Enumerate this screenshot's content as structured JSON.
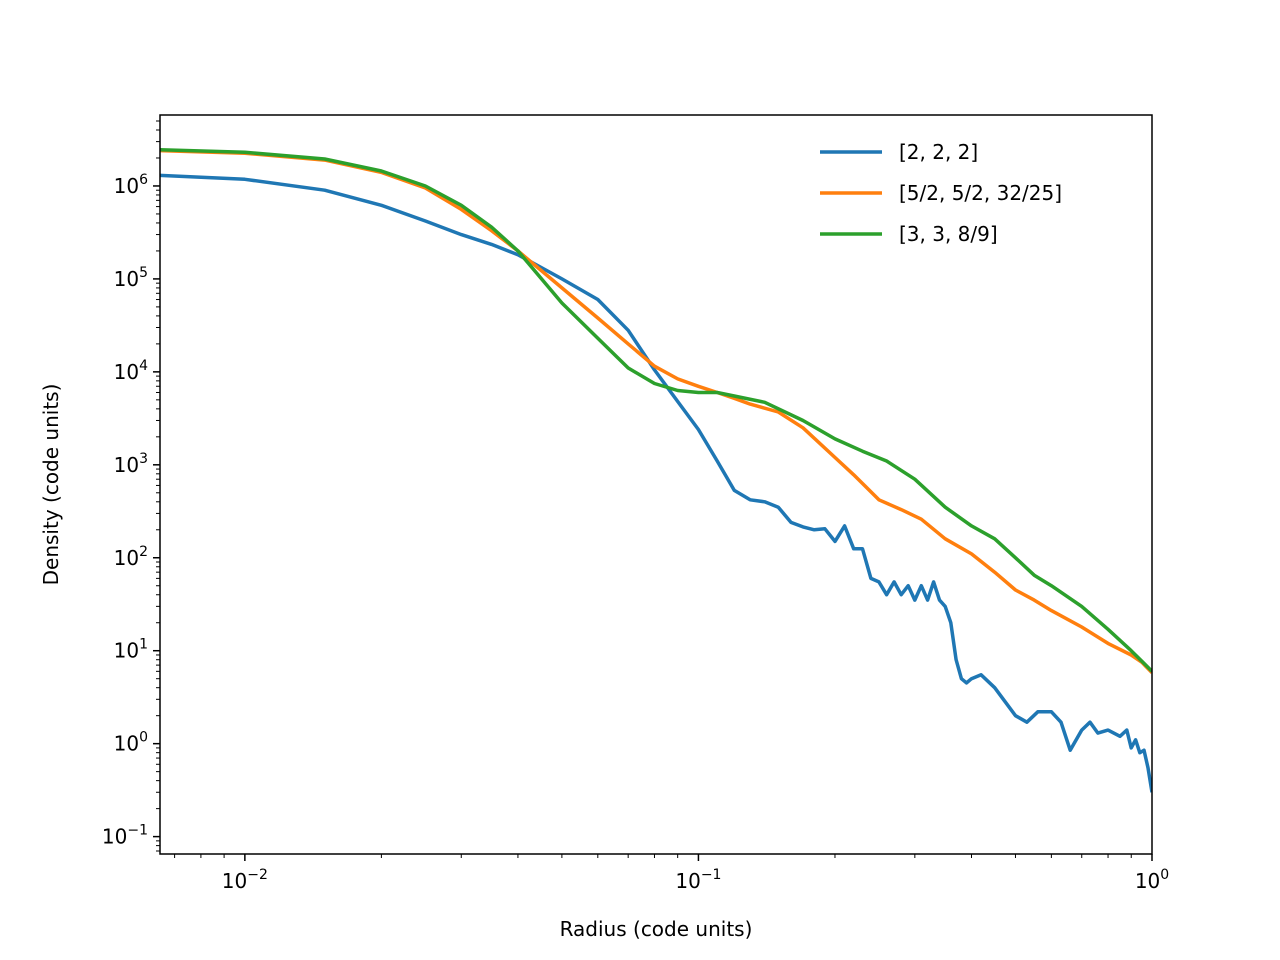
{
  "chart_data": {
    "type": "line",
    "title": "",
    "xlabel": "Radius (code units)",
    "ylabel": "Density (code units)",
    "xscale": "log",
    "yscale": "log",
    "xlim": [
      0.0065,
      1.0
    ],
    "ylim": [
      0.065,
      5800000
    ],
    "grid": false,
    "legend_position": "top-right",
    "x_ticks": [
      {
        "value": 0.01,
        "base": "10",
        "exp": "−2"
      },
      {
        "value": 0.1,
        "base": "10",
        "exp": "−1"
      },
      {
        "value": 1,
        "base": "10",
        "exp": "0"
      }
    ],
    "y_ticks": [
      {
        "value": 0.1,
        "base": "10",
        "exp": "−1"
      },
      {
        "value": 1,
        "base": "10",
        "exp": "0"
      },
      {
        "value": 10,
        "base": "10",
        "exp": "1"
      },
      {
        "value": 100,
        "base": "10",
        "exp": "2"
      },
      {
        "value": 1000,
        "base": "10",
        "exp": "3"
      },
      {
        "value": 10000,
        "base": "10",
        "exp": "4"
      },
      {
        "value": 100000,
        "base": "10",
        "exp": "5"
      },
      {
        "value": 1000000,
        "base": "10",
        "exp": "6"
      }
    ],
    "series": [
      {
        "name": "[2, 2, 2]",
        "color": "#1f77b4",
        "points": [
          [
            0.0065,
            1300000
          ],
          [
            0.01,
            1180000
          ],
          [
            0.015,
            900000
          ],
          [
            0.02,
            620000
          ],
          [
            0.025,
            420000
          ],
          [
            0.03,
            300000
          ],
          [
            0.035,
            235000
          ],
          [
            0.04,
            182000
          ],
          [
            0.05,
            100000
          ],
          [
            0.06,
            60000
          ],
          [
            0.07,
            28000
          ],
          [
            0.08,
            10500
          ],
          [
            0.09,
            4800
          ],
          [
            0.1,
            2400
          ],
          [
            0.11,
            1100
          ],
          [
            0.12,
            530
          ],
          [
            0.13,
            420
          ],
          [
            0.14,
            400
          ],
          [
            0.15,
            350
          ],
          [
            0.16,
            240
          ],
          [
            0.17,
            215
          ],
          [
            0.18,
            200
          ],
          [
            0.19,
            205
          ],
          [
            0.2,
            150
          ],
          [
            0.21,
            220
          ],
          [
            0.22,
            125
          ],
          [
            0.23,
            125
          ],
          [
            0.24,
            60
          ],
          [
            0.25,
            55
          ],
          [
            0.26,
            40
          ],
          [
            0.27,
            55
          ],
          [
            0.28,
            40
          ],
          [
            0.29,
            50
          ],
          [
            0.3,
            35
          ],
          [
            0.31,
            50
          ],
          [
            0.32,
            35
          ],
          [
            0.33,
            55
          ],
          [
            0.34,
            35
          ],
          [
            0.35,
            30
          ],
          [
            0.36,
            20
          ],
          [
            0.37,
            8
          ],
          [
            0.38,
            5
          ],
          [
            0.39,
            4.5
          ],
          [
            0.4,
            5
          ],
          [
            0.42,
            5.5
          ],
          [
            0.45,
            4
          ],
          [
            0.5,
            2
          ],
          [
            0.53,
            1.7
          ],
          [
            0.56,
            2.2
          ],
          [
            0.6,
            2.2
          ],
          [
            0.63,
            1.7
          ],
          [
            0.66,
            0.85
          ],
          [
            0.7,
            1.4
          ],
          [
            0.73,
            1.7
          ],
          [
            0.76,
            1.3
          ],
          [
            0.8,
            1.4
          ],
          [
            0.85,
            1.2
          ],
          [
            0.88,
            1.4
          ],
          [
            0.9,
            0.9
          ],
          [
            0.92,
            1.1
          ],
          [
            0.94,
            0.8
          ],
          [
            0.96,
            0.85
          ],
          [
            0.98,
            0.55
          ],
          [
            1.0,
            0.3
          ]
        ]
      },
      {
        "name": "[5/2, 5/2, 32/25]",
        "color": "#ff7f0e",
        "points": [
          [
            0.0065,
            2400000
          ],
          [
            0.01,
            2250000
          ],
          [
            0.015,
            1900000
          ],
          [
            0.02,
            1400000
          ],
          [
            0.025,
            950000
          ],
          [
            0.03,
            560000
          ],
          [
            0.035,
            330000
          ],
          [
            0.04,
            200000
          ],
          [
            0.05,
            80000
          ],
          [
            0.06,
            38000
          ],
          [
            0.07,
            20000
          ],
          [
            0.08,
            11500
          ],
          [
            0.09,
            8400
          ],
          [
            0.1,
            7000
          ],
          [
            0.11,
            6000
          ],
          [
            0.12,
            5200
          ],
          [
            0.13,
            4500
          ],
          [
            0.15,
            3700
          ],
          [
            0.17,
            2500
          ],
          [
            0.2,
            1200
          ],
          [
            0.22,
            780
          ],
          [
            0.25,
            420
          ],
          [
            0.28,
            330
          ],
          [
            0.31,
            260
          ],
          [
            0.35,
            160
          ],
          [
            0.4,
            110
          ],
          [
            0.45,
            70
          ],
          [
            0.5,
            45
          ],
          [
            0.55,
            35
          ],
          [
            0.6,
            27
          ],
          [
            0.7,
            18
          ],
          [
            0.8,
            12
          ],
          [
            0.9,
            9
          ],
          [
            0.95,
            7.5
          ],
          [
            1.0,
            5.8
          ]
        ]
      },
      {
        "name": "[3, 3, 8/9]",
        "color": "#2ca02c",
        "points": [
          [
            0.0065,
            2450000
          ],
          [
            0.01,
            2300000
          ],
          [
            0.015,
            1950000
          ],
          [
            0.02,
            1450000
          ],
          [
            0.025,
            1000000
          ],
          [
            0.03,
            620000
          ],
          [
            0.035,
            360000
          ],
          [
            0.04,
            200000
          ],
          [
            0.05,
            55000
          ],
          [
            0.06,
            23000
          ],
          [
            0.07,
            11000
          ],
          [
            0.08,
            7500
          ],
          [
            0.09,
            6300
          ],
          [
            0.1,
            6000
          ],
          [
            0.11,
            6000
          ],
          [
            0.12,
            5500
          ],
          [
            0.14,
            4700
          ],
          [
            0.17,
            3000
          ],
          [
            0.2,
            1900
          ],
          [
            0.23,
            1400
          ],
          [
            0.26,
            1100
          ],
          [
            0.3,
            700
          ],
          [
            0.35,
            350
          ],
          [
            0.4,
            220
          ],
          [
            0.45,
            160
          ],
          [
            0.5,
            100
          ],
          [
            0.55,
            65
          ],
          [
            0.6,
            50
          ],
          [
            0.7,
            30
          ],
          [
            0.8,
            17
          ],
          [
            0.9,
            10
          ],
          [
            1.0,
            6
          ]
        ]
      }
    ]
  }
}
